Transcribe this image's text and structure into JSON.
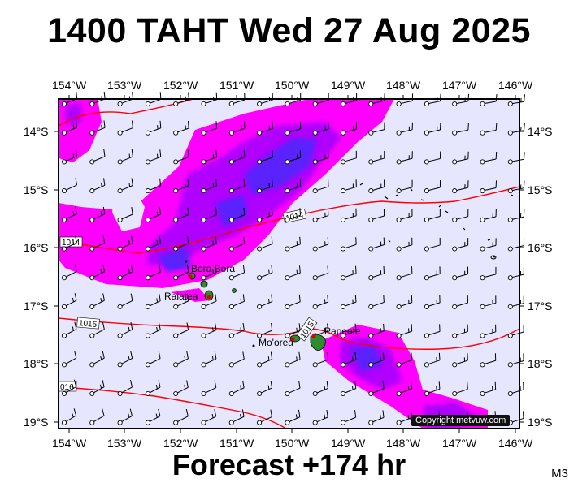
{
  "header": {
    "title": "1400 TAHT Wed 27 Aug 2025"
  },
  "footer": {
    "forecast": "Forecast +174 hr",
    "model": "M3"
  },
  "copyright": "Copyright metvuw.com",
  "axes": {
    "lon_labels": [
      "154°W",
      "153°W",
      "152°W",
      "151°W",
      "150°W",
      "149°W",
      "148°W",
      "147°W",
      "146°W"
    ],
    "lat_labels": [
      "14°S",
      "15°S",
      "16°S",
      "17°S",
      "18°S",
      "19°S"
    ]
  },
  "isobars": [
    {
      "value": "1014"
    },
    {
      "value": "1014"
    },
    {
      "value": "1015"
    },
    {
      "value": "1015"
    },
    {
      "value": "016"
    }
  ],
  "places": {
    "bora_bora": "Bora Bora",
    "raiatea": "Raiatea",
    "moorea": "Mo'orea",
    "papeete": "Papeete"
  },
  "colors": {
    "background": "#e6e6ff",
    "rain_light": "#ff00ff",
    "rain_medium": "#b000ff",
    "rain_heavy": "#5a20ff",
    "isobar": "#ff0000",
    "land": "#2e8b2e"
  }
}
